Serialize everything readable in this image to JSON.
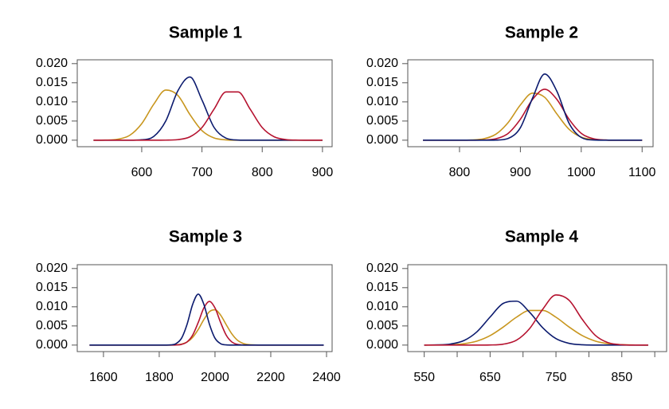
{
  "chart_data": [
    {
      "type": "line",
      "title": "Sample 1",
      "x": [
        520,
        540,
        560,
        580,
        600,
        620,
        640,
        660,
        680,
        700,
        720,
        740,
        760,
        780,
        800,
        820,
        840,
        860,
        880,
        900
      ],
      "series": [
        {
          "color": "#c8961e",
          "values": [
            0,
            3e-05,
            0.00024,
            0.00127,
            0.00432,
            0.0094,
            0.0131,
            0.0117,
            0.0067,
            0.0025,
            0.00058,
            9e-05,
            0,
            0,
            0,
            0,
            0,
            0,
            0,
            0
          ]
        },
        {
          "color": "#0b1a6e",
          "values": [
            0,
            0,
            0,
            0,
            0.0001,
            0.00099,
            0.00505,
            0.0129,
            0.0165,
            0.0105,
            0.00335,
            0.00053,
            4e-05,
            0,
            0,
            0,
            0,
            0,
            0,
            0
          ]
        },
        {
          "color": "#b5122f",
          "values": [
            0,
            0,
            0,
            0,
            0,
            0,
            2e-05,
            0.00015,
            0.00088,
            0.0033,
            0.0081,
            0.0126,
            0.0126,
            0.0081,
            0.0033,
            0.00088,
            0.00015,
            2e-05,
            0,
            0
          ]
        }
      ],
      "xlim": [
        493,
        916
      ],
      "xticks": [
        600,
        700,
        800,
        900
      ],
      "ylim": [
        -0.0017,
        0.021
      ],
      "yticks": [
        {
          "value": 0,
          "label": "0.000"
        },
        {
          "value": 0.005,
          "label": "0.005"
        },
        {
          "value": 0.01,
          "label": "0.010"
        },
        {
          "value": 0.015,
          "label": "0.015"
        },
        {
          "value": 0.02,
          "label": "0.020"
        }
      ]
    },
    {
      "type": "line",
      "title": "Sample 2",
      "x": [
        740,
        760,
        780,
        800,
        820,
        840,
        860,
        880,
        900,
        920,
        940,
        960,
        980,
        1000,
        1020,
        1040,
        1060,
        1080,
        1100
      ],
      "series": [
        {
          "color": "#c8961e",
          "values": [
            0,
            0,
            0,
            0,
            6e-05,
            0.00037,
            0.00159,
            0.00463,
            0.0092,
            0.0123,
            0.0112,
            0.00685,
            0.00284,
            0.0008,
            0.00015,
            2e-05,
            0,
            0,
            0
          ]
        },
        {
          "color": "#b5122f",
          "values": [
            0,
            0,
            0,
            0,
            0,
            5e-05,
            0.00038,
            0.0018,
            0.00547,
            0.01065,
            0.0133,
            0.01065,
            0.00547,
            0.0018,
            0.00038,
            5e-05,
            0,
            0,
            0
          ]
        },
        {
          "color": "#0b1a6e",
          "values": [
            0,
            0,
            0,
            0,
            0,
            0,
            3e-05,
            0.00046,
            0.00326,
            0.011,
            0.0173,
            0.01277,
            0.00443,
            0.00072,
            6e-05,
            0,
            0,
            0,
            0
          ]
        }
      ],
      "xlim": [
        715,
        1118
      ],
      "xticks": [
        800,
        900,
        1000,
        1100
      ],
      "ylim": [
        -0.0017,
        0.021
      ],
      "yticks": [
        {
          "value": 0,
          "label": "0.000"
        },
        {
          "value": 0.005,
          "label": "0.005"
        },
        {
          "value": 0.01,
          "label": "0.010"
        },
        {
          "value": 0.015,
          "label": "0.015"
        },
        {
          "value": 0.02,
          "label": "0.020"
        }
      ]
    },
    {
      "type": "line",
      "title": "Sample 3",
      "x": [
        1550,
        1650,
        1750,
        1820,
        1840,
        1860,
        1880,
        1900,
        1920,
        1940,
        1960,
        1980,
        2000,
        2020,
        2040,
        2060,
        2080,
        2100,
        2120,
        2160,
        2200,
        2300,
        2390
      ],
      "series": [
        {
          "color": "#c8961e",
          "values": [
            0,
            0,
            0,
            0,
            1e-05,
            7e-05,
            0.00026,
            0.00081,
            0.00203,
            0.00409,
            0.00666,
            0.00873,
            0.00922,
            0.00784,
            0.00536,
            0.00297,
            0.00131,
            0.00047,
            0.00014,
            1e-05,
            0,
            0,
            0
          ]
        },
        {
          "color": "#b5122f",
          "values": [
            0,
            0,
            0,
            0,
            0,
            3e-05,
            0.00019,
            0.00084,
            0.00262,
            0.00593,
            0.00969,
            0.0114,
            0.00969,
            0.00593,
            0.00262,
            0.00084,
            0.00019,
            3e-05,
            0,
            0,
            0,
            0,
            0
          ]
        },
        {
          "color": "#0b1a6e",
          "values": [
            0,
            0,
            0,
            0,
            5e-05,
            0.00038,
            0.0018,
            0.00547,
            0.01065,
            0.0133,
            0.01065,
            0.00547,
            0.0018,
            0.00038,
            5e-05,
            0,
            0,
            0,
            0,
            0,
            0,
            0,
            0
          ]
        }
      ],
      "xlim": [
        1506,
        2420
      ],
      "xticks": [
        1600,
        1800,
        2000,
        2200,
        2400
      ],
      "ylim": [
        -0.0017,
        0.021
      ],
      "yticks": [
        {
          "value": 0,
          "label": "0.000"
        },
        {
          "value": 0.005,
          "label": "0.005"
        },
        {
          "value": 0.01,
          "label": "0.010"
        },
        {
          "value": 0.015,
          "label": "0.015"
        },
        {
          "value": 0.02,
          "label": "0.020"
        }
      ]
    },
    {
      "type": "line",
      "title": "Sample 4",
      "x": [
        550,
        570,
        590,
        610,
        630,
        650,
        670,
        690,
        710,
        730,
        750,
        770,
        790,
        810,
        830,
        850,
        870,
        890
      ],
      "series": [
        {
          "color": "#c8961e",
          "values": [
            0,
            2e-05,
            0.0001,
            0.00035,
            0.00104,
            0.00247,
            0.00472,
            0.00728,
            0.00903,
            0.00903,
            0.00728,
            0.00472,
            0.00247,
            0.00104,
            0.00035,
            0.0001,
            2e-05,
            0
          ]
        },
        {
          "color": "#0b1a6e",
          "values": [
            1e-05,
            5e-05,
            0.00028,
            0.00116,
            0.00347,
            0.00733,
            0.0109,
            0.01147,
            0.00856,
            0.00452,
            0.00169,
            0.00045,
            8e-05,
            1e-05,
            0,
            0,
            0,
            0
          ]
        },
        {
          "color": "#b5122f",
          "values": [
            0,
            0,
            0,
            0,
            0,
            3e-05,
            0.00024,
            0.00127,
            0.00432,
            0.0094,
            0.0131,
            0.0117,
            0.0067,
            0.0025,
            0.00058,
            9e-05,
            1e-05,
            0
          ]
        }
      ],
      "xlim": [
        525,
        918
      ],
      "xticks": [
        550,
        {
          "value": 600,
          "label": null
        },
        650,
        {
          "value": 700,
          "label": null
        },
        750,
        {
          "value": 800,
          "label": null
        },
        850,
        {
          "value": 900,
          "label": null
        }
      ],
      "ylim": [
        -0.0017,
        0.021
      ],
      "yticks": [
        {
          "value": 0,
          "label": "0.000"
        },
        {
          "value": 0.005,
          "label": "0.005"
        },
        {
          "value": 0.01,
          "label": "0.010"
        },
        {
          "value": 0.015,
          "label": "0.015"
        },
        {
          "value": 0.02,
          "label": "0.020"
        }
      ]
    }
  ]
}
